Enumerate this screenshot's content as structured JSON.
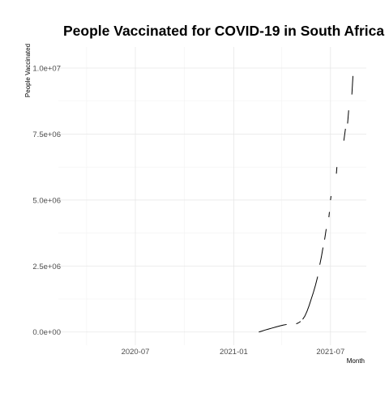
{
  "chart_data": {
    "type": "line",
    "title": "People Vaccinated for COVID-19 in South Africa",
    "xlabel": "Month",
    "ylabel": "People Vaccinated",
    "x_type": "date",
    "xlim": [
      "2020-02-08",
      "2021-09-06"
    ],
    "ylim": [
      -500000,
      10800000
    ],
    "x_ticks": [
      {
        "value": "2020-07-01",
        "label": "2020-07"
      },
      {
        "value": "2021-01-01",
        "label": "2021-01"
      },
      {
        "value": "2021-07-01",
        "label": "2021-07"
      }
    ],
    "x_minor_ticks": [
      "2020-04-01",
      "2020-10-01",
      "2021-04-01"
    ],
    "y_ticks": [
      {
        "value": 0,
        "label": "0.0e+00"
      },
      {
        "value": 2500000,
        "label": "2.5e+06"
      },
      {
        "value": 5000000,
        "label": "5.0e+06"
      },
      {
        "value": 7500000,
        "label": "7.5e+06"
      },
      {
        "value": 10000000,
        "label": "1.0e+07"
      }
    ],
    "y_minor_ticks": [
      1250000,
      3750000,
      6250000,
      8750000
    ],
    "grid": true,
    "segments": [
      [
        {
          "x": "2021-02-17",
          "y": 0
        },
        {
          "x": "2021-02-22",
          "y": 30000
        },
        {
          "x": "2021-02-28",
          "y": 70000
        },
        {
          "x": "2021-03-07",
          "y": 110000
        },
        {
          "x": "2021-03-14",
          "y": 150000
        },
        {
          "x": "2021-03-21",
          "y": 190000
        },
        {
          "x": "2021-03-28",
          "y": 230000
        },
        {
          "x": "2021-04-04",
          "y": 265000
        },
        {
          "x": "2021-04-10",
          "y": 285000
        }
      ],
      [
        {
          "x": "2021-04-28",
          "y": 310000
        },
        {
          "x": "2021-05-02",
          "y": 345000
        },
        {
          "x": "2021-05-06",
          "y": 400000
        }
      ],
      [
        {
          "x": "2021-05-10",
          "y": 480000
        },
        {
          "x": "2021-05-14",
          "y": 600000
        },
        {
          "x": "2021-05-18",
          "y": 780000
        },
        {
          "x": "2021-05-22",
          "y": 1000000
        },
        {
          "x": "2021-05-26",
          "y": 1250000
        },
        {
          "x": "2021-05-30",
          "y": 1500000
        },
        {
          "x": "2021-06-03",
          "y": 1780000
        },
        {
          "x": "2021-06-07",
          "y": 2100000
        }
      ],
      [
        {
          "x": "2021-06-11",
          "y": 2550000
        },
        {
          "x": "2021-06-14",
          "y": 2850000
        },
        {
          "x": "2021-06-17",
          "y": 3200000
        }
      ],
      [
        {
          "x": "2021-06-20",
          "y": 3500000
        },
        {
          "x": "2021-06-23",
          "y": 3900000
        }
      ],
      [
        {
          "x": "2021-06-28",
          "y": 4350000
        },
        {
          "x": "2021-06-29",
          "y": 4550000
        }
      ],
      [
        {
          "x": "2021-07-01",
          "y": 5000000
        },
        {
          "x": "2021-07-02",
          "y": 5150000
        }
      ],
      [
        {
          "x": "2021-07-12",
          "y": 6000000
        },
        {
          "x": "2021-07-13",
          "y": 6250000
        }
      ],
      [
        {
          "x": "2021-07-26",
          "y": 7250000
        },
        {
          "x": "2021-07-29",
          "y": 7700000
        }
      ],
      [
        {
          "x": "2021-08-02",
          "y": 7900000
        },
        {
          "x": "2021-08-04",
          "y": 8400000
        }
      ],
      [
        {
          "x": "2021-08-10",
          "y": 9000000
        },
        {
          "x": "2021-08-12",
          "y": 9700000
        }
      ]
    ]
  }
}
